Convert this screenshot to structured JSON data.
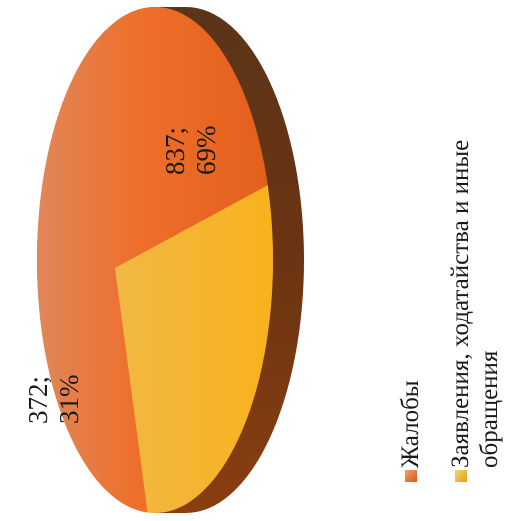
{
  "chart_data": {
    "type": "pie",
    "title": "",
    "series": [
      {
        "name": "Жалобы",
        "value": 837,
        "percent": "69%",
        "label_value": "837;",
        "label_percent": "69%",
        "color": "#ED6E28",
        "side_color": "#5A2E14"
      },
      {
        "name": "Заявления, ходатайства и иные обращения",
        "value": 372,
        "percent": "31%",
        "label_value": "372;",
        "label_percent": "31%",
        "color": "#F8B524",
        "side_color": "#B07A10"
      }
    ],
    "legend": {
      "position": "right",
      "orientation": "rotated-90",
      "items": [
        {
          "lines": [
            "Жалобы"
          ],
          "color": "#ED6E28"
        },
        {
          "lines": [
            "Заявления, ходатайства и иные",
            "обращения"
          ],
          "color": "#F8B524"
        }
      ]
    },
    "style": "3d-pie-rotated"
  }
}
